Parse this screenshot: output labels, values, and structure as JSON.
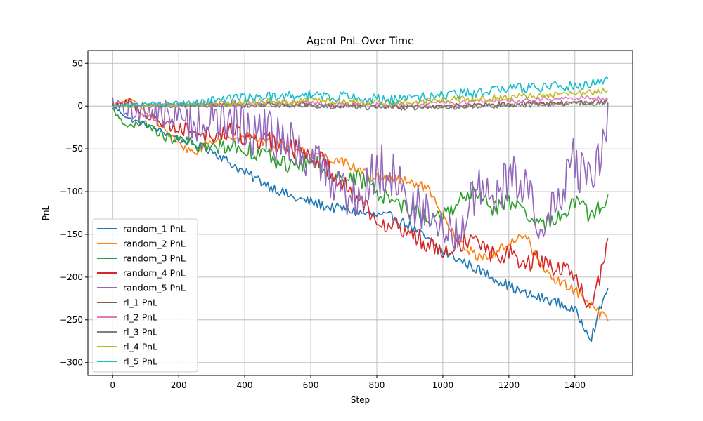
{
  "chart_data": {
    "type": "line",
    "title": "Agent PnL Over Time",
    "xlabel": "Step",
    "ylabel": "PnL",
    "xlim": [
      -75,
      1575
    ],
    "ylim": [
      -315,
      65
    ],
    "xticks": [
      0,
      200,
      400,
      600,
      800,
      1000,
      1200,
      1400
    ],
    "yticks": [
      50,
      0,
      -50,
      -100,
      -150,
      -200,
      -250,
      -300
    ],
    "ytick_labels": [
      "50",
      "0",
      "−50",
      "−100",
      "−150",
      "−200",
      "−250",
      "−300"
    ],
    "grid": true,
    "legend_position": "lower-left",
    "series": [
      {
        "name": "random_1 PnL",
        "color": "#1f77b4",
        "x": [
          0,
          50,
          100,
          150,
          200,
          250,
          300,
          350,
          400,
          450,
          500,
          550,
          600,
          650,
          700,
          750,
          800,
          850,
          900,
          950,
          1000,
          1050,
          1100,
          1150,
          1200,
          1250,
          1300,
          1350,
          1400,
          1450,
          1500
        ],
        "y": [
          0,
          -15,
          -22,
          -30,
          -38,
          -45,
          -52,
          -65,
          -78,
          -88,
          -98,
          -108,
          -112,
          -118,
          -120,
          -125,
          -128,
          -130,
          -140,
          -155,
          -170,
          -180,
          -190,
          -200,
          -210,
          -220,
          -225,
          -230,
          -240,
          -270,
          -210
        ],
        "noise": 6
      },
      {
        "name": "random_2 PnL",
        "color": "#ff7f0e",
        "x": [
          0,
          50,
          100,
          150,
          200,
          250,
          300,
          350,
          400,
          450,
          500,
          550,
          600,
          650,
          700,
          750,
          800,
          850,
          900,
          950,
          1000,
          1050,
          1100,
          1150,
          1200,
          1250,
          1300,
          1350,
          1400,
          1450,
          1500
        ],
        "y": [
          0,
          8,
          -5,
          -25,
          -45,
          -55,
          -40,
          -35,
          -35,
          -40,
          -45,
          -50,
          -55,
          -60,
          -65,
          -75,
          -85,
          -85,
          -90,
          -95,
          -130,
          -160,
          -175,
          -175,
          -160,
          -150,
          -190,
          -205,
          -215,
          -235,
          -250
        ],
        "noise": 6
      },
      {
        "name": "random_3 PnL",
        "color": "#2ca02c",
        "x": [
          0,
          50,
          100,
          150,
          200,
          250,
          300,
          350,
          400,
          450,
          500,
          550,
          600,
          650,
          700,
          750,
          800,
          850,
          900,
          950,
          1000,
          1050,
          1100,
          1150,
          1200,
          1250,
          1300,
          1350,
          1400,
          1450,
          1500
        ],
        "y": [
          -5,
          -25,
          -20,
          -35,
          -40,
          -45,
          -50,
          -45,
          -50,
          -55,
          -65,
          -70,
          -65,
          -75,
          -85,
          -85,
          -100,
          -110,
          -120,
          -130,
          -130,
          -110,
          -100,
          -120,
          -110,
          -130,
          -140,
          -130,
          -110,
          -130,
          -105
        ],
        "noise": 10
      },
      {
        "name": "random_4 PnL",
        "color": "#d62728",
        "x": [
          0,
          50,
          100,
          150,
          200,
          250,
          300,
          350,
          400,
          450,
          500,
          550,
          600,
          650,
          700,
          750,
          800,
          850,
          900,
          950,
          1000,
          1050,
          1100,
          1150,
          1200,
          1250,
          1300,
          1350,
          1400,
          1450,
          1500
        ],
        "y": [
          0,
          5,
          -10,
          -20,
          -25,
          -30,
          -35,
          -30,
          -35,
          -40,
          -45,
          -50,
          -55,
          -70,
          -90,
          -110,
          -130,
          -140,
          -150,
          -160,
          -165,
          -160,
          -150,
          -175,
          -170,
          -185,
          -180,
          -190,
          -200,
          -240,
          -160
        ],
        "noise": 12
      },
      {
        "name": "random_5 PnL",
        "color": "#9467bd",
        "x": [
          0,
          50,
          100,
          150,
          200,
          250,
          300,
          350,
          400,
          450,
          500,
          550,
          600,
          650,
          700,
          750,
          800,
          850,
          900,
          950,
          1000,
          1050,
          1100,
          1150,
          1200,
          1250,
          1300,
          1350,
          1400,
          1450,
          1500
        ],
        "y": [
          0,
          -5,
          -5,
          -10,
          -15,
          -20,
          -15,
          -20,
          -25,
          -30,
          -40,
          -50,
          -60,
          -80,
          -95,
          -110,
          -70,
          -80,
          -110,
          -130,
          -150,
          -145,
          -100,
          -120,
          -80,
          -90,
          -150,
          -110,
          -60,
          -100,
          -20
        ],
        "noise": 30
      },
      {
        "name": "rl_1 PnL",
        "color": "#8c564b",
        "x": [
          0,
          50,
          100,
          150,
          200,
          250,
          300,
          350,
          400,
          450,
          500,
          550,
          600,
          650,
          700,
          750,
          800,
          850,
          900,
          950,
          1000,
          1050,
          1100,
          1150,
          1200,
          1250,
          1300,
          1350,
          1400,
          1450,
          1500
        ],
        "y": [
          0,
          0,
          0,
          0,
          1,
          1,
          1,
          1,
          1,
          2,
          2,
          2,
          2,
          1,
          1,
          1,
          0,
          0,
          0,
          0,
          0,
          1,
          1,
          2,
          2,
          3,
          3,
          3,
          4,
          4,
          5
        ],
        "noise": 3
      },
      {
        "name": "rl_2 PnL",
        "color": "#e377c2",
        "x": [
          0,
          50,
          100,
          150,
          200,
          250,
          300,
          350,
          400,
          450,
          500,
          550,
          600,
          650,
          700,
          750,
          800,
          850,
          900,
          950,
          1000,
          1050,
          1100,
          1150,
          1200,
          1250,
          1300,
          1350,
          1400,
          1450,
          1500
        ],
        "y": [
          0,
          0,
          1,
          1,
          1,
          2,
          2,
          2,
          3,
          3,
          3,
          4,
          4,
          3,
          3,
          3,
          2,
          2,
          3,
          3,
          4,
          4,
          5,
          6,
          6,
          7,
          8,
          8,
          9,
          9,
          10
        ],
        "noise": 3
      },
      {
        "name": "rl_3 PnL",
        "color": "#7f7f7f",
        "x": [
          0,
          50,
          100,
          150,
          200,
          250,
          300,
          350,
          400,
          450,
          500,
          550,
          600,
          650,
          700,
          750,
          800,
          850,
          900,
          950,
          1000,
          1050,
          1100,
          1150,
          1200,
          1250,
          1300,
          1350,
          1400,
          1450,
          1500
        ],
        "y": [
          0,
          0,
          0,
          0,
          0,
          0,
          1,
          1,
          1,
          1,
          1,
          1,
          1,
          0,
          0,
          -1,
          -2,
          -2,
          -2,
          -2,
          -1,
          -1,
          0,
          0,
          1,
          1,
          2,
          2,
          3,
          3,
          4
        ],
        "noise": 3
      },
      {
        "name": "rl_4 PnL",
        "color": "#bcbd22",
        "x": [
          0,
          50,
          100,
          150,
          200,
          250,
          300,
          350,
          400,
          450,
          500,
          550,
          600,
          650,
          700,
          750,
          800,
          850,
          900,
          950,
          1000,
          1050,
          1100,
          1150,
          1200,
          1250,
          1300,
          1350,
          1400,
          1450,
          1500
        ],
        "y": [
          0,
          0,
          1,
          1,
          2,
          2,
          3,
          3,
          4,
          5,
          5,
          6,
          7,
          6,
          6,
          5,
          4,
          4,
          5,
          6,
          7,
          8,
          9,
          10,
          11,
          12,
          13,
          14,
          15,
          16,
          18
        ],
        "noise": 4
      },
      {
        "name": "rl_5 PnL",
        "color": "#17becf",
        "x": [
          0,
          50,
          100,
          150,
          200,
          250,
          300,
          350,
          400,
          450,
          500,
          550,
          600,
          650,
          700,
          750,
          800,
          850,
          900,
          950,
          1000,
          1050,
          1100,
          1150,
          1200,
          1250,
          1300,
          1350,
          1400,
          1450,
          1500
        ],
        "y": [
          0,
          1,
          2,
          2,
          3,
          4,
          6,
          8,
          9,
          10,
          11,
          12,
          13,
          12,
          11,
          10,
          8,
          7,
          9,
          11,
          12,
          14,
          16,
          18,
          20,
          21,
          22,
          23,
          24,
          26,
          30
        ],
        "noise": 6
      }
    ]
  }
}
